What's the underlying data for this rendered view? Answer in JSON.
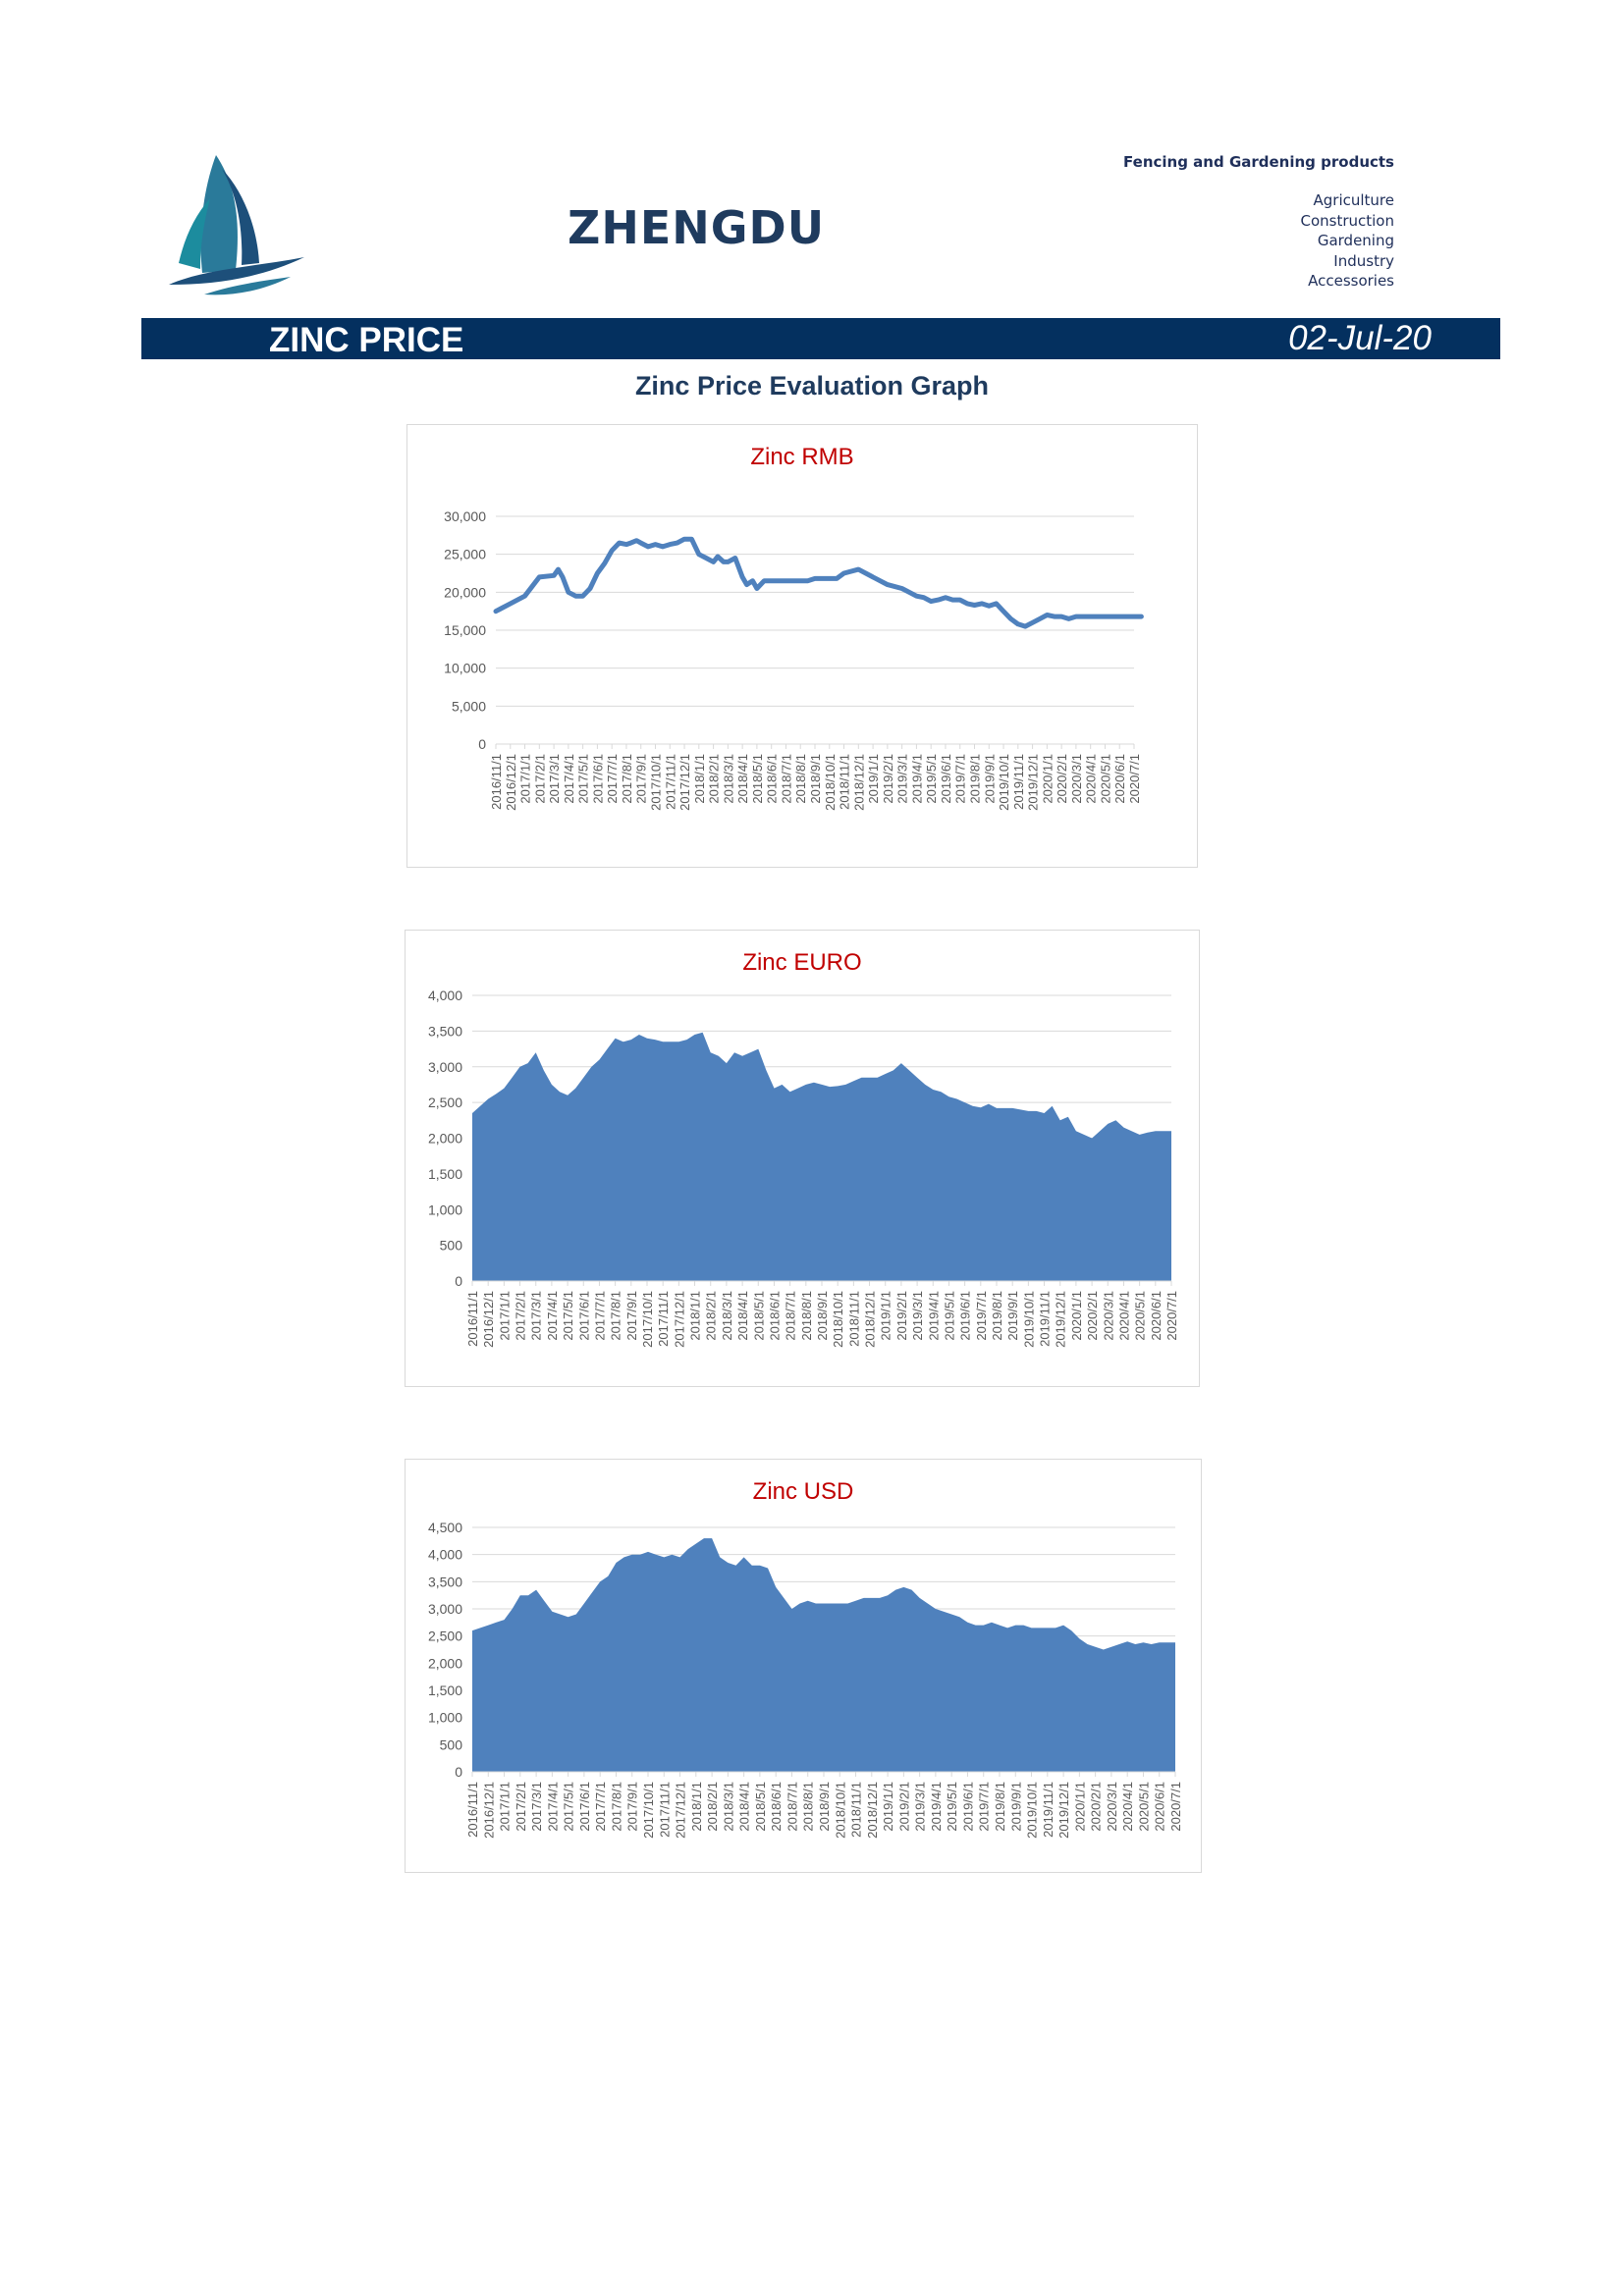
{
  "header": {
    "brand": "ZHENGDU",
    "products_heading": "Fencing and Gardening products",
    "product_items": [
      "Agriculture",
      "Construction",
      "Gardening",
      "Industry",
      "Accessories"
    ]
  },
  "banner": {
    "title": "ZINC PRICE",
    "date": "02-Jul-20"
  },
  "subtitle": "Zinc Price Evaluation Graph",
  "colors": {
    "banner": "#04305f",
    "series": "#4f81bd",
    "chart_title": "#c00000",
    "brand": "#1f3b5e"
  },
  "icons": {
    "logo": "sailboat-logo-icon"
  },
  "chart_data": [
    {
      "type": "line",
      "title": "Zinc RMB",
      "ylim": [
        0,
        30000
      ],
      "yticks": [
        0,
        5000,
        10000,
        15000,
        20000,
        25000,
        30000
      ],
      "grid": true,
      "x_tick_labels": [
        "2016/11/1",
        "2016/12/1",
        "2017/1/1",
        "2017/2/1",
        "2017/3/1",
        "2017/4/1",
        "2017/5/1",
        "2017/6/1",
        "2017/7/1",
        "2017/8/1",
        "2017/9/1",
        "2017/10/1",
        "2017/11/1",
        "2017/12/1",
        "2018/1/1",
        "2018/2/1",
        "2018/3/1",
        "2018/4/1",
        "2018/5/1",
        "2018/6/1",
        "2018/7/1",
        "2018/8/1",
        "2018/9/1",
        "2018/10/1",
        "2018/11/1",
        "2018/12/1",
        "2019/1/1",
        "2019/2/1",
        "2019/3/1",
        "2019/4/1",
        "2019/5/1",
        "2019/6/1",
        "2019/7/1",
        "2019/8/1",
        "2019/9/1",
        "2019/10/1",
        "2019/11/1",
        "2019/12/1",
        "2020/1/1",
        "2020/2/1",
        "2020/3/1",
        "2020/4/1",
        "2020/5/1",
        "2020/6/1",
        "2020/7/1"
      ],
      "x": [
        0,
        1,
        2,
        3,
        4,
        4.3,
        4.6,
        5,
        5.5,
        6,
        6.5,
        7,
        7.5,
        8,
        8.5,
        9,
        9.3,
        9.7,
        10,
        10.5,
        11,
        11.5,
        12,
        12.5,
        13,
        13.5,
        14,
        14.5,
        15,
        15.3,
        15.7,
        16,
        16.5,
        17,
        17.3,
        17.7,
        18,
        18.5,
        19,
        19.5,
        20,
        20.5,
        21,
        21.5,
        22,
        22.5,
        23,
        23.5,
        24,
        25,
        26,
        27,
        28,
        28.5,
        29,
        29.5,
        30,
        30.5,
        31,
        31.5,
        32,
        32.5,
        33,
        33.5,
        34,
        34.5,
        35,
        35.5,
        36,
        36.5,
        37,
        37.5,
        38,
        38.5,
        39,
        39.5,
        40,
        40.5,
        41,
        41.5,
        42,
        42.5,
        43,
        43.5,
        44,
        44.5
      ],
      "series": [
        {
          "values": [
            17500,
            18500,
            19500,
            22000,
            22200,
            23000,
            22000,
            20000,
            19500,
            19500,
            20500,
            22500,
            23800,
            25500,
            26500,
            26300,
            26500,
            26800,
            26500,
            26000,
            26300,
            26000,
            26300,
            26500,
            27000,
            27000,
            25000,
            24500,
            24000,
            24700,
            24000,
            24000,
            24500,
            22000,
            21000,
            21500,
            20500,
            21500,
            21500,
            21500,
            21500,
            21500,
            21500,
            21500,
            21800,
            21800,
            21800,
            21800,
            22500,
            23000,
            22000,
            21000,
            20500,
            20000,
            19500,
            19300,
            18800,
            19000,
            19300,
            19000,
            19000,
            18500,
            18300,
            18500,
            18200,
            18500,
            17500,
            16500,
            15800,
            15500,
            16000,
            16500,
            17000,
            16800,
            16800,
            16500,
            16800,
            16800,
            16800,
            16800,
            16800,
            16800,
            16800,
            16800,
            16800,
            16800
          ]
        }
      ]
    },
    {
      "type": "area",
      "title": "Zinc EURO",
      "ylim": [
        0,
        4000
      ],
      "yticks": [
        0,
        500,
        1000,
        1500,
        2000,
        2500,
        3000,
        3500,
        4000
      ],
      "grid": true,
      "x_tick_labels": [
        "2016/11/1",
        "2016/12/1",
        "2017/1/1",
        "2017/2/1",
        "2017/3/1",
        "2017/4/1",
        "2017/5/1",
        "2017/6/1",
        "2017/7/1",
        "2017/8/1",
        "2017/9/1",
        "2017/10/1",
        "2017/11/1",
        "2017/12/1",
        "2018/1/1",
        "2018/2/1",
        "2018/3/1",
        "2018/4/1",
        "2018/5/1",
        "2018/6/1",
        "2018/7/1",
        "2018/8/1",
        "2018/9/1",
        "2018/10/1",
        "2018/11/1",
        "2018/12/1",
        "2019/1/1",
        "2019/2/1",
        "2019/3/1",
        "2019/4/1",
        "2019/5/1",
        "2019/6/1",
        "2019/7/1",
        "2019/8/1",
        "2019/9/1",
        "2019/10/1",
        "2019/11/1",
        "2019/12/1",
        "2020/1/1",
        "2020/2/1",
        "2020/3/1",
        "2020/4/1",
        "2020/5/1",
        "2020/6/1",
        "2020/7/1"
      ],
      "x": [
        0,
        0.5,
        1,
        1.5,
        2,
        2.5,
        3,
        3.5,
        4,
        4.5,
        5,
        5.5,
        6,
        6.5,
        7,
        7.5,
        8,
        8.5,
        9,
        9.5,
        10,
        10.5,
        11,
        11.5,
        12,
        12.5,
        13,
        13.5,
        14,
        14.5,
        15,
        15.5,
        16,
        16.5,
        17,
        17.5,
        18,
        18.5,
        19,
        19.5,
        20,
        20.5,
        21,
        21.5,
        22,
        22.5,
        23,
        23.5,
        24,
        24.5,
        25,
        25.5,
        26,
        26.5,
        27,
        27.5,
        28,
        28.5,
        29,
        29.5,
        30,
        30.5,
        31,
        31.5,
        32,
        32.5,
        33,
        33.5,
        34,
        34.5,
        35,
        35.5,
        36,
        36.5,
        37,
        37.5,
        38,
        38.5,
        39,
        39.5,
        40,
        40.5,
        41,
        41.5,
        42,
        42.5,
        43,
        43.5,
        44
      ],
      "series": [
        {
          "values": [
            2350,
            2450,
            2550,
            2620,
            2700,
            2850,
            3000,
            3050,
            3200,
            2950,
            2750,
            2650,
            2600,
            2700,
            2850,
            3000,
            3100,
            3250,
            3400,
            3350,
            3380,
            3450,
            3400,
            3380,
            3350,
            3350,
            3350,
            3380,
            3450,
            3480,
            3200,
            3150,
            3050,
            3200,
            3150,
            3200,
            3250,
            2950,
            2700,
            2750,
            2650,
            2700,
            2750,
            2780,
            2750,
            2720,
            2730,
            2750,
            2800,
            2850,
            2850,
            2850,
            2900,
            2950,
            3050,
            2950,
            2850,
            2750,
            2680,
            2650,
            2580,
            2550,
            2500,
            2450,
            2430,
            2480,
            2420,
            2420,
            2420,
            2400,
            2380,
            2380,
            2350,
            2450,
            2250,
            2300,
            2100,
            2050,
            2000,
            2100,
            2200,
            2250,
            2150,
            2100,
            2050,
            2080,
            2100,
            2100,
            2100
          ]
        }
      ]
    },
    {
      "type": "area",
      "title": "Zinc USD",
      "ylim": [
        0,
        4500
      ],
      "yticks": [
        0,
        500,
        1000,
        1500,
        2000,
        2500,
        3000,
        3500,
        4000,
        4500
      ],
      "grid": true,
      "x_tick_labels": [
        "2016/11/1",
        "2016/12/1",
        "2017/1/1",
        "2017/2/1",
        "2017/3/1",
        "2017/4/1",
        "2017/5/1",
        "2017/6/1",
        "2017/7/1",
        "2017/8/1",
        "2017/9/1",
        "2017/10/1",
        "2017/11/1",
        "2017/12/1",
        "2018/1/1",
        "2018/2/1",
        "2018/3/1",
        "2018/4/1",
        "2018/5/1",
        "2018/6/1",
        "2018/7/1",
        "2018/8/1",
        "2018/9/1",
        "2018/10/1",
        "2018/11/1",
        "2018/12/1",
        "2019/1/1",
        "2019/2/1",
        "2019/3/1",
        "2019/4/1",
        "2019/5/1",
        "2019/6/1",
        "2019/7/1",
        "2019/8/1",
        "2019/9/1",
        "2019/10/1",
        "2019/11/1",
        "2019/12/1",
        "2020/1/1",
        "2020/2/1",
        "2020/3/1",
        "2020/4/1",
        "2020/5/1",
        "2020/6/1",
        "2020/7/1"
      ],
      "x": [
        0,
        0.5,
        1,
        1.5,
        2,
        2.5,
        3,
        3.5,
        4,
        4.5,
        5,
        5.5,
        6,
        6.5,
        7,
        7.5,
        8,
        8.5,
        9,
        9.5,
        10,
        10.5,
        11,
        11.5,
        12,
        12.5,
        13,
        13.5,
        14,
        14.5,
        15,
        15.5,
        16,
        16.5,
        17,
        17.5,
        18,
        18.5,
        19,
        19.5,
        20,
        20.5,
        21,
        21.5,
        22,
        22.5,
        23,
        23.5,
        24,
        24.5,
        25,
        25.5,
        26,
        26.5,
        27,
        27.5,
        28,
        28.5,
        29,
        29.5,
        30,
        30.5,
        31,
        31.5,
        32,
        32.5,
        33,
        33.5,
        34,
        34.5,
        35,
        35.5,
        36,
        36.5,
        37,
        37.5,
        38,
        38.5,
        39,
        39.5,
        40,
        40.5,
        41,
        41.5,
        42,
        42.5,
        43,
        43.5,
        44
      ],
      "series": [
        {
          "values": [
            2600,
            2650,
            2700,
            2750,
            2800,
            3000,
            3250,
            3250,
            3350,
            3150,
            2950,
            2900,
            2850,
            2900,
            3100,
            3300,
            3500,
            3600,
            3850,
            3950,
            4000,
            4000,
            4050,
            4000,
            3950,
            4000,
            3950,
            4100,
            4200,
            4300,
            4300,
            3950,
            3850,
            3800,
            3950,
            3800,
            3800,
            3750,
            3400,
            3200,
            3000,
            3100,
            3150,
            3100,
            3100,
            3100,
            3100,
            3100,
            3150,
            3200,
            3200,
            3200,
            3250,
            3350,
            3400,
            3350,
            3200,
            3100,
            3000,
            2950,
            2900,
            2850,
            2750,
            2700,
            2700,
            2750,
            2700,
            2650,
            2700,
            2700,
            2650,
            2650,
            2650,
            2650,
            2700,
            2600,
            2450,
            2350,
            2300,
            2250,
            2300,
            2350,
            2400,
            2350,
            2380,
            2350,
            2380,
            2380,
            2380
          ]
        }
      ]
    }
  ]
}
